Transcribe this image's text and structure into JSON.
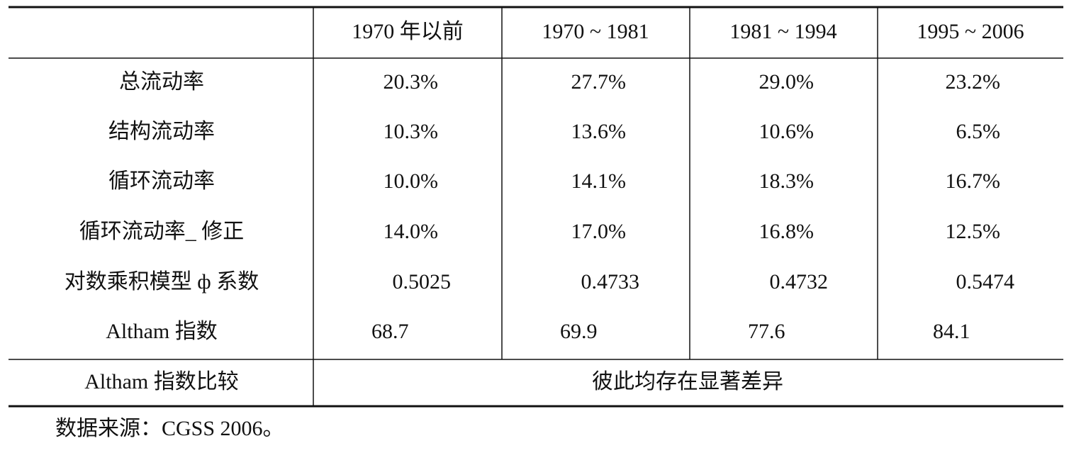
{
  "table": {
    "columns": [
      "1970 年以前",
      "1970 ~ 1981",
      "1981 ~ 1994",
      "1995 ~ 2006"
    ],
    "rows": [
      {
        "label": "总流动率",
        "values": [
          "20.3%",
          "27.7%",
          "29.0%",
          "23.2%"
        ]
      },
      {
        "label": "结构流动率",
        "values": [
          "10.3%",
          "13.6%",
          "10.6%",
          "6.5%"
        ]
      },
      {
        "label": "循环流动率",
        "values": [
          "10.0%",
          "14.1%",
          "18.3%",
          "16.7%"
        ]
      },
      {
        "label": "循环流动率_ 修正",
        "values": [
          "14.0%",
          "17.0%",
          "16.8%",
          "12.5%"
        ]
      },
      {
        "label": "对数乘积模型 ф 系数",
        "values": [
          "0.5025",
          "0.4733",
          "0.4732",
          "0.5474"
        ]
      },
      {
        "label": "Altham 指数",
        "values": [
          "68.7",
          "69.9",
          "77.6",
          "84.1"
        ]
      }
    ],
    "comparison": {
      "label": "Altham 指数比较",
      "text": "彼此均存在显著差异"
    }
  },
  "note": "数据来源：CGSS 2006。"
}
